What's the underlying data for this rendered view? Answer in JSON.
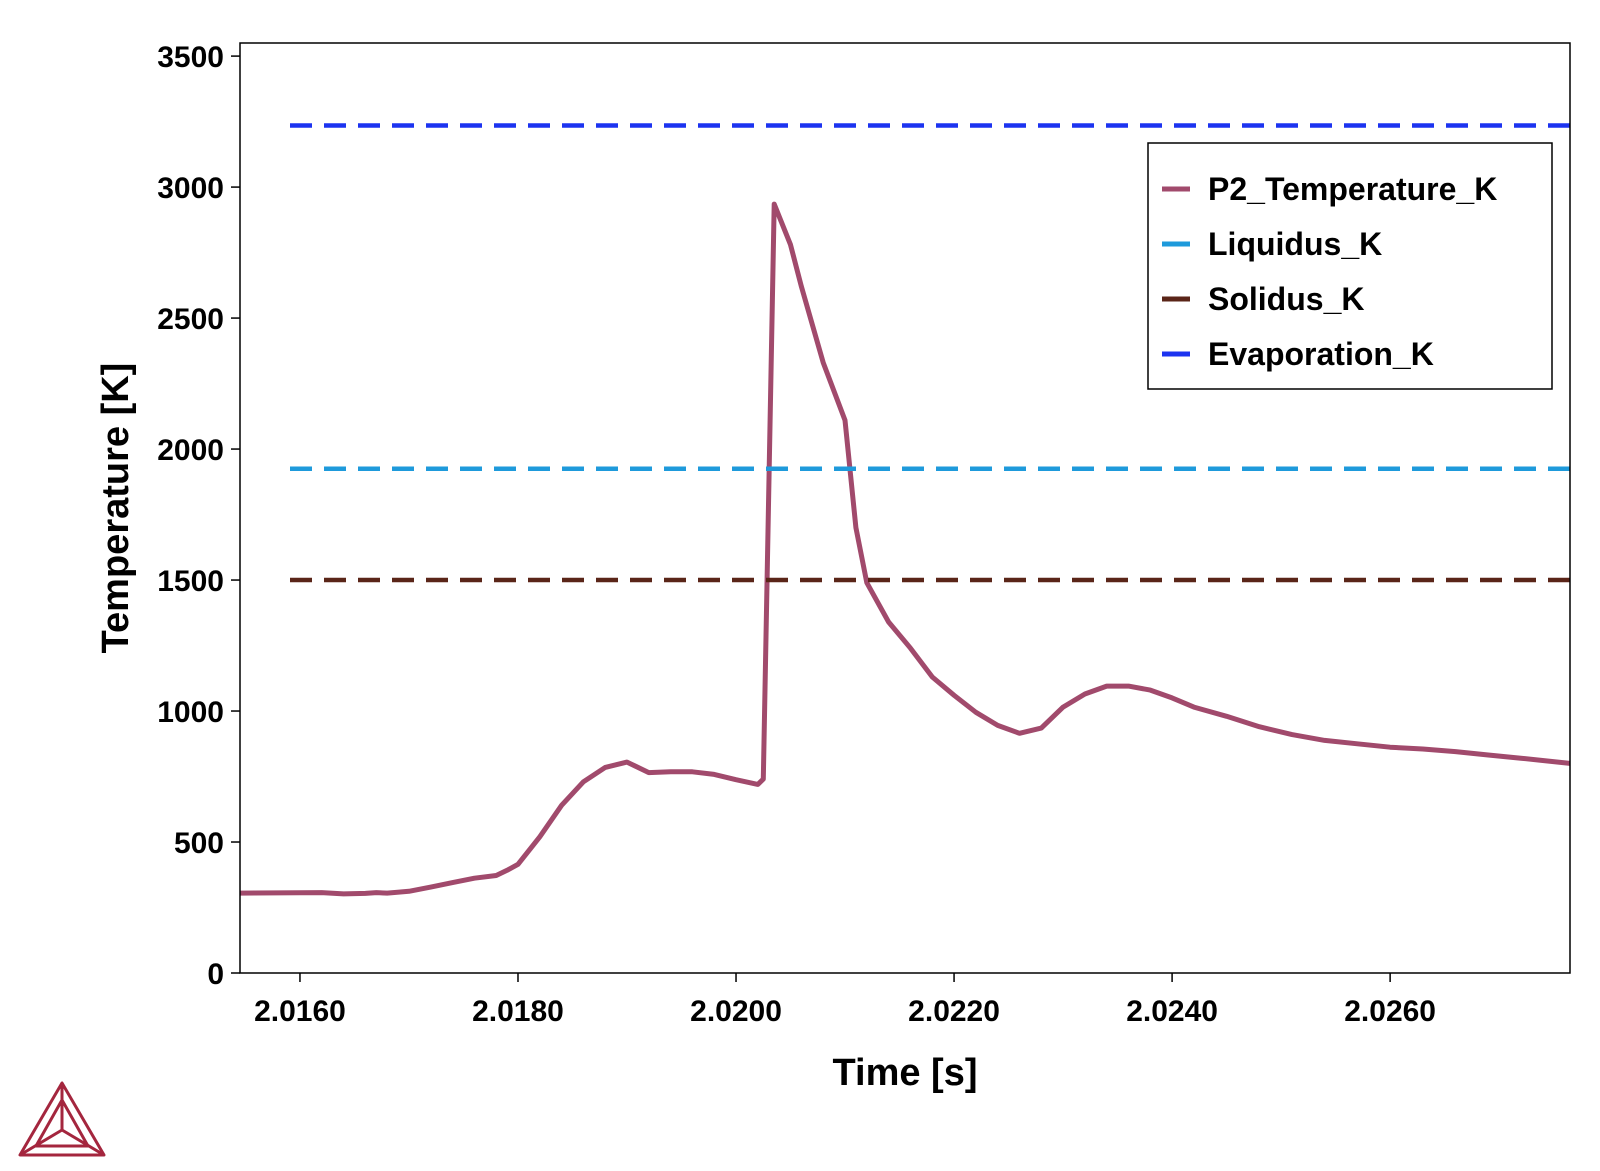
{
  "chart_data": {
    "type": "line",
    "xlabel": "Time [s]",
    "ylabel": "Temperature [K]",
    "xlim": [
      2.01545,
      2.02765
    ],
    "ylim": [
      0,
      3550
    ],
    "xticks": [
      2.016,
      2.018,
      2.02,
      2.022,
      2.024,
      2.026
    ],
    "xtick_labels": [
      "2.0160",
      "2.0180",
      "2.0200",
      "2.0220",
      "2.0240",
      "2.0260"
    ],
    "yticks": [
      0,
      500,
      1000,
      1500,
      2000,
      2500,
      3000,
      3500
    ],
    "ytick_labels": [
      "0",
      "500",
      "1000",
      "1500",
      "2000",
      "2500",
      "3000",
      "3500"
    ],
    "grid": false,
    "legend_position": "top-right",
    "series": [
      {
        "name": "P2_Temperature_K",
        "color": "#A14A6C",
        "style": "solid",
        "x": [
          2.01545,
          2.0162,
          2.0164,
          2.0166,
          2.0167,
          2.0168,
          2.017,
          2.0172,
          2.0174,
          2.0176,
          2.0178,
          2.0179,
          2.018,
          2.0182,
          2.0184,
          2.0186,
          2.0188,
          2.019,
          2.0192,
          2.0194,
          2.0196,
          2.0198,
          2.02,
          2.0202,
          2.02025,
          2.02035,
          2.0205,
          2.0206,
          2.0208,
          2.021,
          2.0211,
          2.0212,
          2.0214,
          2.0216,
          2.0218,
          2.022,
          2.0222,
          2.0224,
          2.0226,
          2.0228,
          2.023,
          2.0232,
          2.0234,
          2.0236,
          2.0238,
          2.024,
          2.0242,
          2.0245,
          2.0248,
          2.0251,
          2.0254,
          2.0257,
          2.026,
          2.0263,
          2.0266,
          2.0269,
          2.0272,
          2.02765
        ],
        "values": [
          305,
          307,
          302,
          304,
          307,
          305,
          312,
          328,
          345,
          362,
          372,
          392,
          415,
          520,
          640,
          730,
          785,
          805,
          765,
          768,
          768,
          758,
          738,
          720,
          740,
          2935,
          2780,
          2620,
          2330,
          2110,
          1700,
          1490,
          1340,
          1240,
          1130,
          1060,
          995,
          945,
          915,
          935,
          1015,
          1065,
          1095,
          1095,
          1080,
          1050,
          1015,
          980,
          940,
          910,
          888,
          875,
          862,
          855,
          845,
          832,
          820,
          800
        ]
      },
      {
        "name": "Liquidus_K",
        "color": "#1E9ADB",
        "style": "dashed",
        "value": 1925
      },
      {
        "name": "Solidus_K",
        "color": "#5A2518",
        "style": "dashed",
        "value": 1500
      },
      {
        "name": "Evaporation_K",
        "color": "#1C33F0",
        "style": "dashed",
        "value": 3235
      }
    ]
  }
}
